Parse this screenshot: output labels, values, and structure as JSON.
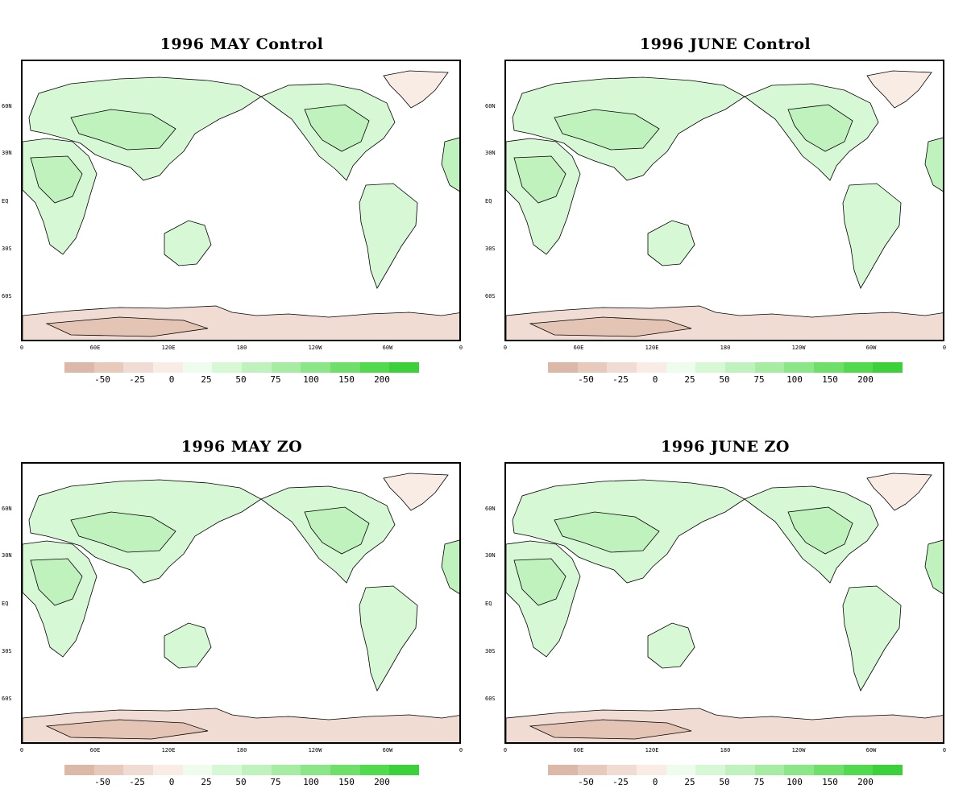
{
  "colorbar": {
    "colors": [
      "#dcb8a8",
      "#e8cabd",
      "#f0dcd2",
      "#f8ece4",
      "#eefcee",
      "#d6f8d4",
      "#bff2bc",
      "#a6eca2",
      "#8ae686",
      "#6ee06a",
      "#52da4e",
      "#3cd03a"
    ],
    "labels": [
      "-50",
      "-25",
      "0",
      "25",
      "50",
      "75",
      "100",
      "150",
      "200"
    ]
  },
  "axes": {
    "lat_labels": [
      "60N",
      "30N",
      "EQ",
      "30S",
      "60S"
    ],
    "lon_labels": [
      "0",
      "60E",
      "120E",
      "180",
      "120W",
      "60W",
      "0"
    ]
  },
  "palette": {
    "land_light": "#d6f8d4",
    "land_mid": "#bff2bc",
    "land_dark": "#a6eca2",
    "polar": "#f0dcd2",
    "polar_dark": "#e4c4b4",
    "greenland": "#f8ece4"
  },
  "panels": [
    {
      "title": "1996 MAY Control"
    },
    {
      "title": "1996 JUNE Control"
    },
    {
      "title": "1996 MAY ZO"
    },
    {
      "title": "1996 JUNE ZO"
    }
  ]
}
